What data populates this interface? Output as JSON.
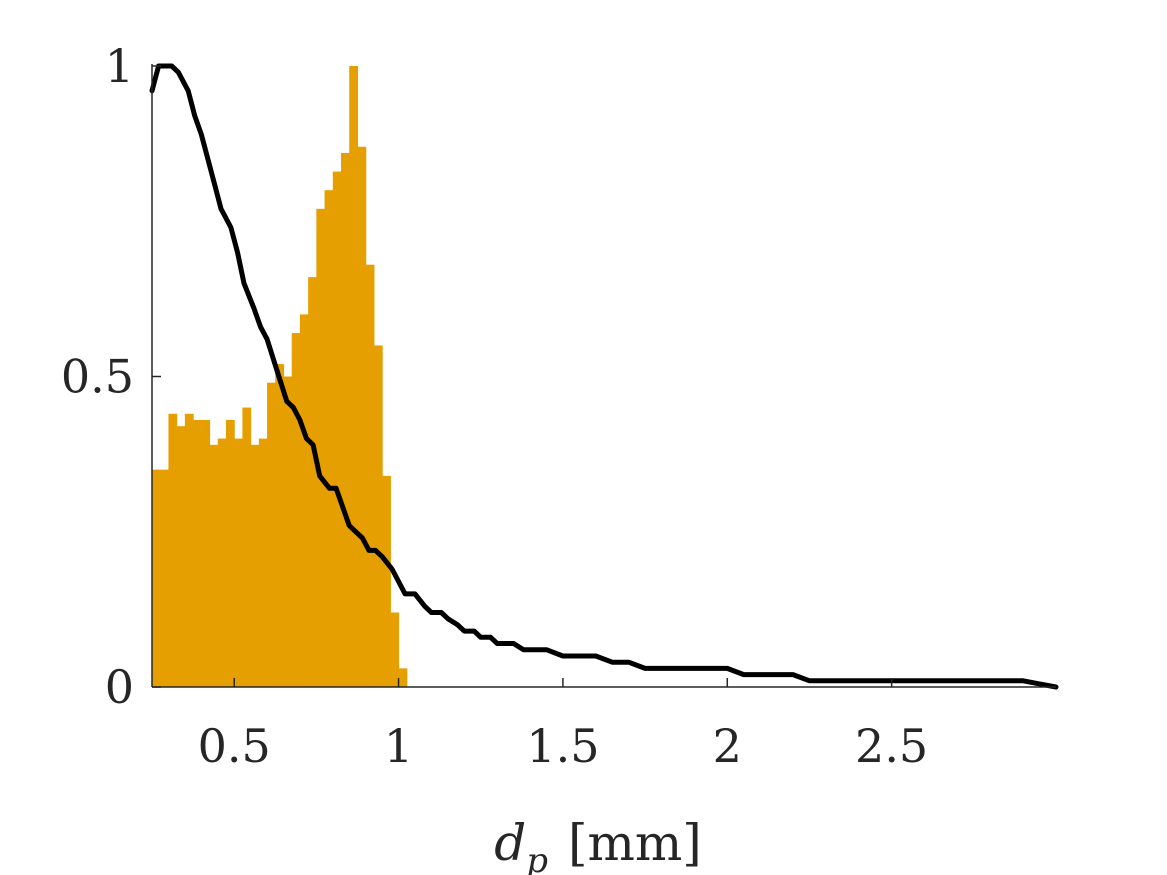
{
  "chart_data": {
    "type": "bar",
    "xlabel_var": "d",
    "xlabel_sub": "p",
    "xlabel_unit": "[mm]",
    "ylabel": "",
    "xlim": [
      0.25,
      3.0
    ],
    "ylim": [
      0,
      1
    ],
    "x_ticks": [
      {
        "value": 0.5,
        "label": "0.5"
      },
      {
        "value": 1,
        "label": "1"
      },
      {
        "value": 1.5,
        "label": "1.5"
      },
      {
        "value": 2,
        "label": "2"
      },
      {
        "value": 2.5,
        "label": "2.5"
      }
    ],
    "y_ticks": [
      {
        "value": 0,
        "label": "0"
      },
      {
        "value": 0.5,
        "label": "0.5"
      },
      {
        "value": 1,
        "label": "1"
      }
    ],
    "grid": false,
    "colors": {
      "histogram": "#E69F00",
      "curve": "#000000",
      "axes": "#262626"
    },
    "histogram": {
      "bin_edges": [
        0.25,
        0.3,
        0.325,
        0.35,
        0.375,
        0.4,
        0.425,
        0.45,
        0.475,
        0.5,
        0.525,
        0.55,
        0.575,
        0.6,
        0.625,
        0.65,
        0.675,
        0.7,
        0.725,
        0.75,
        0.775,
        0.8,
        0.825,
        0.85,
        0.875,
        0.9,
        0.925,
        0.95,
        0.975,
        1.0,
        1.025,
        1.05,
        1.075
      ],
      "values": [
        0.35,
        0.44,
        0.42,
        0.44,
        0.43,
        0.43,
        0.39,
        0.4,
        0.43,
        0.4,
        0.45,
        0.39,
        0.4,
        0.49,
        0.52,
        0.5,
        0.57,
        0.6,
        0.66,
        0.77,
        0.8,
        0.83,
        0.86,
        1.0,
        0.87,
        0.68,
        0.55,
        0.34,
        0.12,
        0.03,
        0.0,
        0.0
      ]
    },
    "curve": {
      "x": [
        0.25,
        0.27,
        0.29,
        0.31,
        0.33,
        0.36,
        0.38,
        0.4,
        0.42,
        0.44,
        0.46,
        0.47,
        0.49,
        0.51,
        0.53,
        0.56,
        0.58,
        0.6,
        0.63,
        0.66,
        0.68,
        0.7,
        0.72,
        0.74,
        0.76,
        0.79,
        0.81,
        0.83,
        0.85,
        0.87,
        0.89,
        0.91,
        0.93,
        0.95,
        0.98,
        1.0,
        1.02,
        1.05,
        1.08,
        1.1,
        1.13,
        1.15,
        1.18,
        1.2,
        1.23,
        1.25,
        1.28,
        1.3,
        1.33,
        1.35,
        1.38,
        1.4,
        1.43,
        1.45,
        1.5,
        1.55,
        1.6,
        1.65,
        1.7,
        1.75,
        1.8,
        1.85,
        1.9,
        1.95,
        2.0,
        2.05,
        2.1,
        2.15,
        2.2,
        2.25,
        2.3,
        2.35,
        2.4,
        2.45,
        2.5,
        2.55,
        2.6,
        2.65,
        2.7,
        2.75,
        2.8,
        2.85,
        2.9,
        2.95,
        3.0
      ],
      "y": [
        0.96,
        1.0,
        1.0,
        1.0,
        0.99,
        0.96,
        0.92,
        0.89,
        0.85,
        0.81,
        0.77,
        0.76,
        0.74,
        0.7,
        0.65,
        0.61,
        0.58,
        0.56,
        0.51,
        0.46,
        0.45,
        0.43,
        0.4,
        0.39,
        0.34,
        0.32,
        0.32,
        0.29,
        0.26,
        0.25,
        0.24,
        0.22,
        0.22,
        0.21,
        0.19,
        0.17,
        0.15,
        0.15,
        0.13,
        0.12,
        0.12,
        0.11,
        0.1,
        0.09,
        0.09,
        0.08,
        0.08,
        0.07,
        0.07,
        0.07,
        0.06,
        0.06,
        0.06,
        0.06,
        0.05,
        0.05,
        0.05,
        0.04,
        0.04,
        0.03,
        0.03,
        0.03,
        0.03,
        0.03,
        0.03,
        0.02,
        0.02,
        0.02,
        0.02,
        0.01,
        0.01,
        0.01,
        0.01,
        0.01,
        0.01,
        0.01,
        0.01,
        0.01,
        0.01,
        0.01,
        0.01,
        0.01,
        0.01,
        0.005,
        0.0
      ]
    }
  }
}
